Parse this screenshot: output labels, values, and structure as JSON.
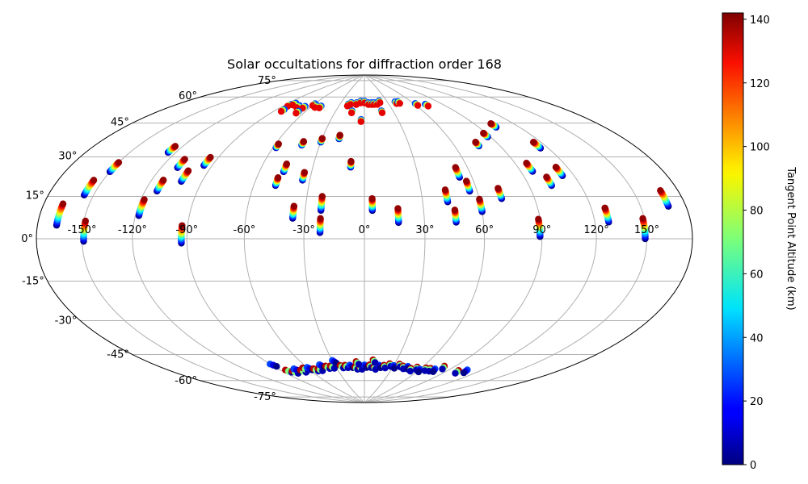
{
  "chart_data": {
    "type": "scatter",
    "projection": "hammer",
    "title": "Solar occultations for diffraction order 168",
    "xlabel": "",
    "ylabel": "",
    "lon_ticks": [
      -150,
      -120,
      -90,
      -60,
      -30,
      0,
      30,
      60,
      90,
      120,
      150
    ],
    "lon_tick_labels": [
      "-150°",
      "-120°",
      "-90°",
      "-60°",
      "-30°",
      "0°",
      "30°",
      "60°",
      "90°",
      "120°",
      "150°"
    ],
    "lat_ticks": [
      -75,
      -60,
      -45,
      -30,
      -15,
      0,
      15,
      30,
      45,
      60,
      75
    ],
    "lat_tick_labels": [
      "-75°",
      "-60°",
      "-45°",
      "-30°",
      "-15°",
      "0°",
      "15°",
      "30°",
      "45°",
      "60°",
      "75°"
    ],
    "grid": true,
    "colorbar": {
      "label": "Tangent Point Altitude (km)",
      "range": [
        0,
        142
      ],
      "ticks": [
        0,
        20,
        40,
        60,
        80,
        100,
        120,
        140
      ],
      "tick_labels": [
        "0",
        "20",
        "40",
        "60",
        "80",
        "100",
        "120",
        "140"
      ],
      "colormap": "jet"
    },
    "tracks_north": [
      {
        "lon": -167,
        "lat_top": 13,
        "lat_bottom": 5
      },
      {
        "lon": -156,
        "lat_top": 23,
        "lat_bottom": 17
      },
      {
        "lon": -150,
        "lat_top": 31,
        "lat_bottom": 27
      },
      {
        "lon": -149,
        "lat_top": 7,
        "lat_bottom": -1
      },
      {
        "lon": -125,
        "lat_top": 41,
        "lat_bottom": 38
      },
      {
        "lon": -118,
        "lat_top": 17,
        "lat_bottom": 10
      },
      {
        "lon": -113,
        "lat_top": 26,
        "lat_bottom": 21
      },
      {
        "lon": -110,
        "lat_top": 36,
        "lat_bottom": 32
      },
      {
        "lon": -102,
        "lat_top": 31,
        "lat_bottom": 26
      },
      {
        "lon": -95,
        "lat_top": 38,
        "lat_bottom": 34
      },
      {
        "lon": -93,
        "lat_top": 6,
        "lat_bottom": -2
      },
      {
        "lon": -58,
        "lat_top": 47,
        "lat_bottom": 45
      },
      {
        "lon": -48,
        "lat_top": 30,
        "lat_bottom": 26
      },
      {
        "lon": -46,
        "lat_top": 37,
        "lat_bottom": 33
      },
      {
        "lon": -42,
        "lat_top": 49,
        "lat_bottom": 47
      },
      {
        "lon": -36,
        "lat_top": 16,
        "lat_bottom": 10
      },
      {
        "lon": -34,
        "lat_top": 33,
        "lat_bottom": 29
      },
      {
        "lon": -30,
        "lat_top": 51,
        "lat_bottom": 49
      },
      {
        "lon": -22,
        "lat_top": 21,
        "lat_bottom": 14
      },
      {
        "lon": -22,
        "lat_top": 10,
        "lat_bottom": 3
      },
      {
        "lon": -18,
        "lat_top": 53,
        "lat_bottom": 51
      },
      {
        "lon": -8,
        "lat_top": 39,
        "lat_bottom": 36
      },
      {
        "lon": 4,
        "lat_top": 20,
        "lat_bottom": 14
      },
      {
        "lon": 17,
        "lat_top": 15,
        "lat_bottom": 8
      },
      {
        "lon": 43,
        "lat_top": 24,
        "lat_bottom": 18
      },
      {
        "lon": 46,
        "lat_top": 14,
        "lat_bottom": 8
      },
      {
        "lon": 53,
        "lat_top": 35,
        "lat_bottom": 30
      },
      {
        "lon": 56,
        "lat_top": 28,
        "lat_bottom": 23
      },
      {
        "lon": 60,
        "lat_top": 19,
        "lat_bottom": 13
      },
      {
        "lon": 72,
        "lat_top": 24,
        "lat_bottom": 19
      },
      {
        "lon": 89,
        "lat_top": 9,
        "lat_bottom": 1
      },
      {
        "lon": 97,
        "lat_top": 35,
        "lat_bottom": 31
      },
      {
        "lon": 103,
        "lat_top": 28,
        "lat_bottom": 24
      },
      {
        "lon": 113,
        "lat_top": 32,
        "lat_bottom": 28
      },
      {
        "lon": 128,
        "lat_top": 13,
        "lat_bottom": 7
      },
      {
        "lon": 149,
        "lat_top": 8,
        "lat_bottom": 0
      },
      {
        "lon": 168,
        "lat_top": 18,
        "lat_bottom": 12
      },
      {
        "lon": 88,
        "lat_top": 51,
        "lat_bottom": 49
      },
      {
        "lon": 103,
        "lat_top": 55,
        "lat_bottom": 53
      },
      {
        "lon": 115,
        "lat_top": 44,
        "lat_bottom": 41
      },
      {
        "lon": 76,
        "lat_top": 47,
        "lat_bottom": 45
      }
    ],
    "polar_points_north": [
      {
        "lon": -85,
        "lat": 68
      },
      {
        "lon": -82,
        "lat": 69
      },
      {
        "lon": -74,
        "lat": 68
      },
      {
        "lon": -67,
        "lat": 68
      },
      {
        "lon": -60,
        "lat": 70
      },
      {
        "lon": -55,
        "lat": 69
      },
      {
        "lon": -50,
        "lat": 69
      },
      {
        "lon": -20,
        "lat": 71
      },
      {
        "lon": -17,
        "lat": 72
      },
      {
        "lon": -10,
        "lat": 72
      },
      {
        "lon": -5,
        "lat": 73
      },
      {
        "lon": 0,
        "lat": 73
      },
      {
        "lon": 5,
        "lat": 72
      },
      {
        "lon": 9,
        "lat": 72
      },
      {
        "lon": 12,
        "lat": 72
      },
      {
        "lon": 16,
        "lat": 72
      },
      {
        "lon": 20,
        "lat": 73
      },
      {
        "lon": 40,
        "lat": 72
      },
      {
        "lon": 44,
        "lat": 72
      },
      {
        "lon": 62,
        "lat": 70
      },
      {
        "lon": 72,
        "lat": 69
      },
      {
        "lon": -83,
        "lat": 65
      },
      {
        "lon": -67,
        "lat": 65
      },
      {
        "lon": -13,
        "lat": 67
      },
      {
        "lon": -3,
        "lat": 62
      },
      {
        "lon": 18,
        "lat": 67
      }
    ],
    "polar_points_south": [
      {
        "lon": -90,
        "lat": -62
      },
      {
        "lon": -85,
        "lat": -66
      },
      {
        "lon": -80,
        "lat": -67
      },
      {
        "lon": -75,
        "lat": -66
      },
      {
        "lon": -70,
        "lat": -67
      },
      {
        "lon": -65,
        "lat": -66
      },
      {
        "lon": -60,
        "lat": -66
      },
      {
        "lon": -55,
        "lat": -67
      },
      {
        "lon": -50,
        "lat": -67
      },
      {
        "lon": -45,
        "lat": -65
      },
      {
        "lon": -40,
        "lat": -66
      },
      {
        "lon": -35,
        "lat": -66
      },
      {
        "lon": -30,
        "lat": -63
      },
      {
        "lon": -25,
        "lat": -66
      },
      {
        "lon": -20,
        "lat": -66
      },
      {
        "lon": -15,
        "lat": -66
      },
      {
        "lon": -10,
        "lat": -67
      },
      {
        "lon": -5,
        "lat": -67
      },
      {
        "lon": 0,
        "lat": -66
      },
      {
        "lon": 5,
        "lat": -66
      },
      {
        "lon": 10,
        "lat": -67
      },
      {
        "lon": 15,
        "lat": -66
      },
      {
        "lon": 20,
        "lat": -66
      },
      {
        "lon": 25,
        "lat": -65
      },
      {
        "lon": 30,
        "lat": -66
      },
      {
        "lon": 35,
        "lat": -65
      },
      {
        "lon": 40,
        "lat": -66
      },
      {
        "lon": 45,
        "lat": -66
      },
      {
        "lon": 50,
        "lat": -67
      },
      {
        "lon": 55,
        "lat": -66
      },
      {
        "lon": 60,
        "lat": -67
      },
      {
        "lon": 65,
        "lat": -66
      },
      {
        "lon": 70,
        "lat": -66
      },
      {
        "lon": 75,
        "lat": -66
      },
      {
        "lon": 80,
        "lat": -64
      },
      {
        "lon": 100,
        "lat": -65
      },
      {
        "lon": 107,
        "lat": -64
      },
      {
        "lon": 8,
        "lat": -63
      },
      {
        "lon": -8,
        "lat": -64
      }
    ]
  }
}
